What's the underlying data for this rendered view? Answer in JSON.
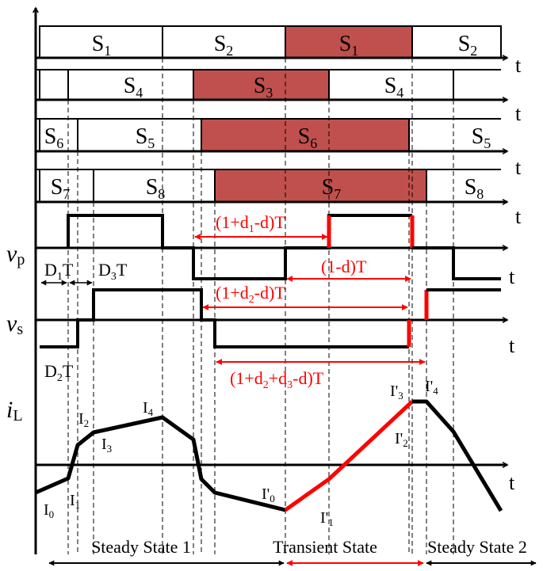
{
  "colors": {
    "ink": "#000000",
    "active_fill": "#c0504d",
    "transient": "#ff0000",
    "background": "#ffffff"
  },
  "switch_rows": [
    {
      "segments": [
        "S",
        "S",
        "S",
        "S"
      ],
      "subs": [
        "1",
        "2",
        "1",
        "2"
      ],
      "active_index": 2
    },
    {
      "segments": [
        "S",
        "S",
        "S"
      ],
      "subs": [
        "4",
        "3",
        "4"
      ],
      "active_index": 1
    },
    {
      "segments": [
        "S",
        "S",
        "S",
        "S"
      ],
      "subs": [
        "6",
        "5",
        "6",
        "5"
      ],
      "active_index": 2
    },
    {
      "segments": [
        "S",
        "S",
        "S",
        "S"
      ],
      "subs": [
        "7",
        "8",
        "7",
        "8"
      ],
      "active_index": 2
    }
  ],
  "axis_label": "t",
  "signals": {
    "vp": {
      "main": "v",
      "sub": "p"
    },
    "vs": {
      "main": "v",
      "sub": "s"
    },
    "iL": {
      "main": "i",
      "sub": "L"
    }
  },
  "time_annotations": {
    "d1t": {
      "a": "D",
      "sub": "1",
      "b": "T"
    },
    "d3t": {
      "a": "D",
      "sub": "3",
      "b": "T"
    },
    "d2t": {
      "a": "D",
      "sub": "2",
      "b": "T"
    },
    "vp_interval": {
      "a": "(1+d",
      "sub": "1",
      "b": "-d)T"
    },
    "vs_interval1": {
      "a": "(1+d",
      "sub": "2",
      "b": "-d)T"
    },
    "vs_interval2": {
      "a": "(1+d",
      "sub": "2",
      "b": "+d",
      "sub2": "3",
      "b2": "-d)T"
    },
    "d_interval": "(1-d)T"
  },
  "current_points": [
    {
      "main": "I",
      "sub": "0"
    },
    {
      "main": "I",
      "sub": "1"
    },
    {
      "main": "I",
      "sub": "2"
    },
    {
      "main": "I",
      "sub": "3"
    },
    {
      "main": "I",
      "sub": "4"
    },
    {
      "main": "I'",
      "sub": "0"
    },
    {
      "main": "I'",
      "sub": "1"
    },
    {
      "main": "I'",
      "sub": "2"
    },
    {
      "main": "I'",
      "sub": "3"
    },
    {
      "main": "I'",
      "sub": "4"
    }
  ],
  "states": {
    "steady1": "Steady State 1",
    "transient": "Transient State",
    "steady2": "Steady State 2"
  }
}
